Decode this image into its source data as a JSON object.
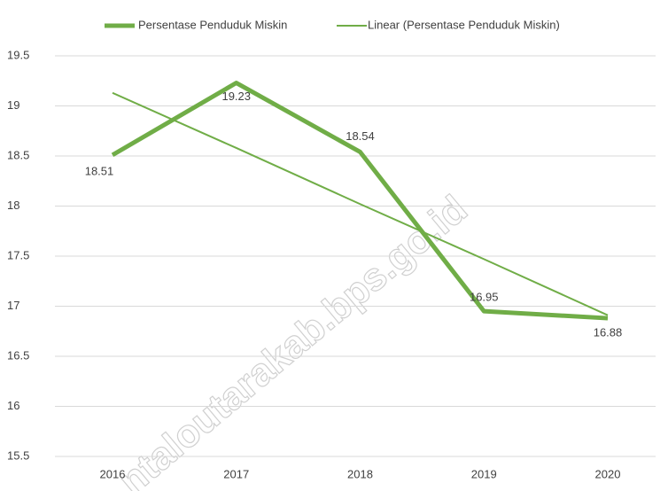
{
  "chart_data": {
    "type": "line",
    "categories": [
      "2016",
      "2017",
      "2018",
      "2019",
      "2020"
    ],
    "series": [
      {
        "name": "Persentase Penduduk Miskin",
        "color": "#70ad47",
        "values": [
          18.51,
          19.23,
          18.54,
          16.95,
          16.88
        ],
        "width": 5,
        "data_labels": true
      },
      {
        "name": "Linear (Persentase Penduduk Miskin)",
        "color": "#70ad47",
        "values": [
          19.13,
          18.58,
          18.02,
          17.47,
          16.91
        ],
        "width": 2,
        "data_labels": false
      }
    ],
    "ylim": [
      15.5,
      19.5
    ],
    "yticks": [
      15.5,
      16,
      16.5,
      17,
      17.5,
      18,
      18.5,
      19,
      19.5
    ],
    "grid": true,
    "legend": "top",
    "watermark": "ntaloutarakab.bps.go.id"
  }
}
